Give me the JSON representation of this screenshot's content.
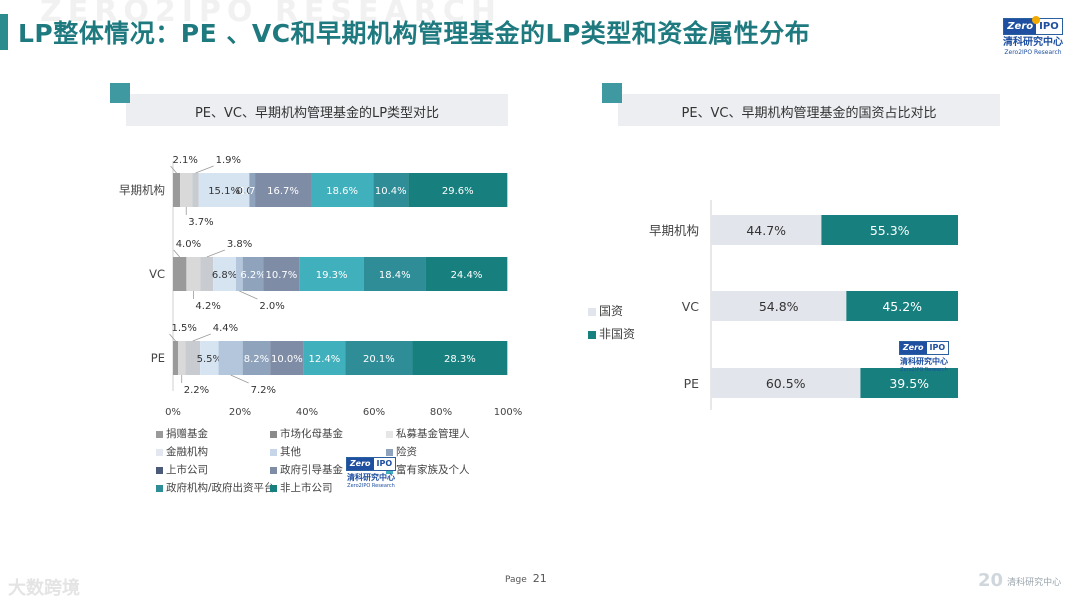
{
  "page": {
    "title": "LP整体情况：PE 、VC和早期机构管理基金的LP类型和资金属性分布",
    "watermark": "ZERO2IPO RESEARCH",
    "page_label": "Page",
    "page_number": "21",
    "footer_left": "大数跨境",
    "footer_right_number": "20",
    "footer_right_text": "清科研究中心"
  },
  "logo": {
    "mark_left": "Zero",
    "mark_right": "IPO",
    "name_cn": "清科研究中心",
    "name_en": "Zero2IPO Research"
  },
  "colors": {
    "accent": "#2a8c8c",
    "title": "#1f7a80",
    "header_bg": "#eceef1"
  },
  "chart_data": [
    {
      "type": "bar",
      "orientation": "horizontal",
      "stacked": true,
      "title": "PE、VC、早期机构管理基金的LP类型对比",
      "categories": [
        "早期机构",
        "VC",
        "PE"
      ],
      "xlim": [
        0,
        100
      ],
      "xticks": [
        "0%",
        "20%",
        "40%",
        "60%",
        "80%",
        "100%"
      ],
      "legend_position": "bottom",
      "series": [
        {
          "name": "捐赠基金",
          "color": "#9a9a9a",
          "values": [
            2.1,
            4.0,
            1.5
          ]
        },
        {
          "name": "市场化母基金",
          "color": "#d9d9d9",
          "values": [
            3.7,
            4.2,
            2.2
          ]
        },
        {
          "name": "私募基金管理人",
          "color": "#c8ccd1",
          "values": [
            1.9,
            3.8,
            4.4
          ]
        },
        {
          "name": "金融机构",
          "color": "#d6e4f1",
          "values": [
            15.1,
            6.8,
            5.5
          ]
        },
        {
          "name": "其他",
          "color": "#b4c6dc",
          "values": [
            0.0,
            2.0,
            7.2
          ]
        },
        {
          "name": "险资",
          "color": "#8fa3bd",
          "values": [
            1.7,
            6.2,
            8.2
          ]
        },
        {
          "name": "上市公司",
          "color": "#4a5a78",
          "values": [
            0,
            0,
            0
          ]
        },
        {
          "name": "政府引导基金",
          "color": "#7f8ca6",
          "values": [
            16.7,
            10.7,
            10.0
          ]
        },
        {
          "name": "富有家族及个人",
          "color": "#3fb0bc",
          "values": [
            18.6,
            19.3,
            12.4
          ]
        },
        {
          "name": "政府机构/政府出资平台",
          "color": "#2e8d97",
          "values": [
            10.4,
            18.4,
            20.1
          ]
        },
        {
          "name": "非上市公司",
          "color": "#17807f",
          "values": [
            29.6,
            24.4,
            28.3
          ]
        }
      ],
      "labels": [
        [
          "2.1%",
          "3.7%",
          "1.9%",
          "15.1%",
          "0.0%",
          "1.7%",
          "",
          "16.7%",
          "18.6%",
          "10.4%",
          "29.6%"
        ],
        [
          "4.0%",
          "4.2%",
          "3.8%",
          "6.8%",
          "2.0%",
          "6.2%",
          "",
          "10.7%",
          "19.3%",
          "18.4%",
          "24.4%"
        ],
        [
          "1.5%",
          "2.2%",
          "4.4%",
          "5.5%",
          "7.2%",
          "8.2%",
          "",
          "10.0%",
          "12.4%",
          "20.1%",
          "28.3%"
        ]
      ]
    },
    {
      "type": "bar",
      "orientation": "horizontal",
      "stacked": true,
      "title": "PE、VC、早期机构管理基金的国资占比对比",
      "categories": [
        "早期机构",
        "VC",
        "PE"
      ],
      "xlim": [
        0,
        100
      ],
      "legend_position": "left",
      "series": [
        {
          "name": "国资",
          "color": "#e3e5ec",
          "values": [
            44.7,
            54.8,
            60.5
          ]
        },
        {
          "name": "非国资",
          "color": "#17807f",
          "values": [
            55.3,
            45.2,
            39.5
          ]
        }
      ],
      "labels": [
        [
          "44.7%",
          "55.3%"
        ],
        [
          "54.8%",
          "45.2%"
        ],
        [
          "60.5%",
          "39.5%"
        ]
      ]
    }
  ]
}
